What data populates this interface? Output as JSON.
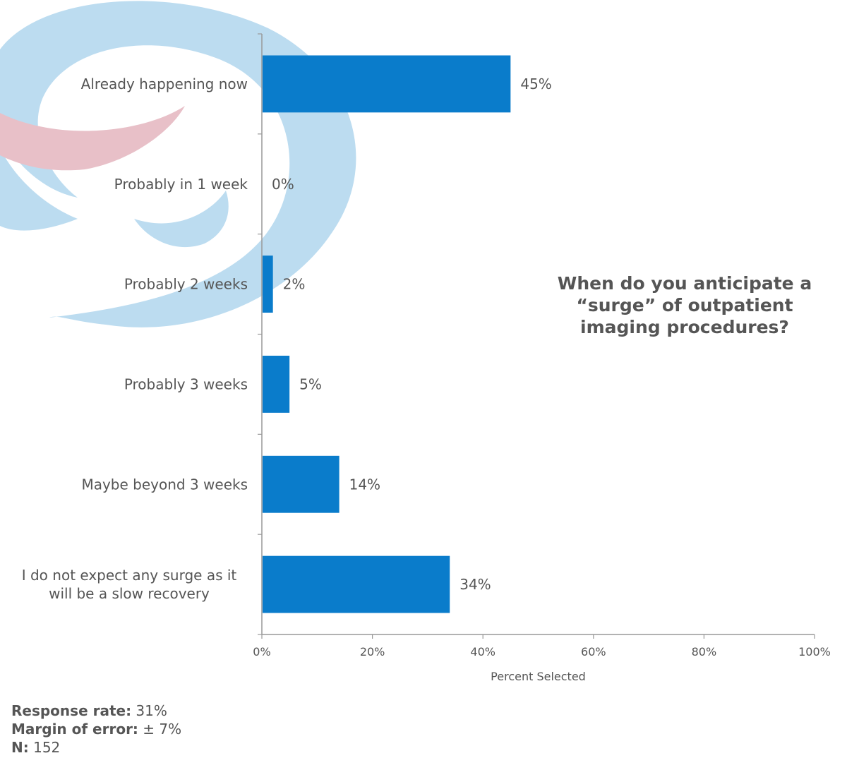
{
  "chart_data": {
    "type": "bar",
    "orientation": "horizontal",
    "title": "When do you anticipate a “surge” of outpatient imaging procedures?",
    "xlabel": "Percent Selected",
    "ylabel": "",
    "xlim": [
      0,
      100
    ],
    "x_ticks": [
      "0%",
      "20%",
      "40%",
      "60%",
      "80%",
      "100%"
    ],
    "categories": [
      "Already happening now",
      "Probably in 1 week",
      "Probably 2 weeks",
      "Probably 3 weeks",
      "Maybe beyond 3 weeks",
      "I do not expect any surge as it will be a slow recovery"
    ],
    "values": [
      45,
      0,
      2,
      5,
      14,
      34
    ],
    "value_labels": [
      "45%",
      "0%",
      "2%",
      "5%",
      "14%",
      "34%"
    ],
    "bar_color": "#0a7ccb",
    "grid": false
  },
  "stats": {
    "response_rate_label": "Response rate:",
    "response_rate_value": " 31%",
    "margin_label": "Margin of error:",
    "margin_value": " ± 7%",
    "n_label": "N:",
    "n_value": " 152"
  },
  "watermark": {
    "icon": "swirl-logo-icon",
    "colors": [
      "#bcdcf0",
      "#e8c0c8"
    ]
  }
}
